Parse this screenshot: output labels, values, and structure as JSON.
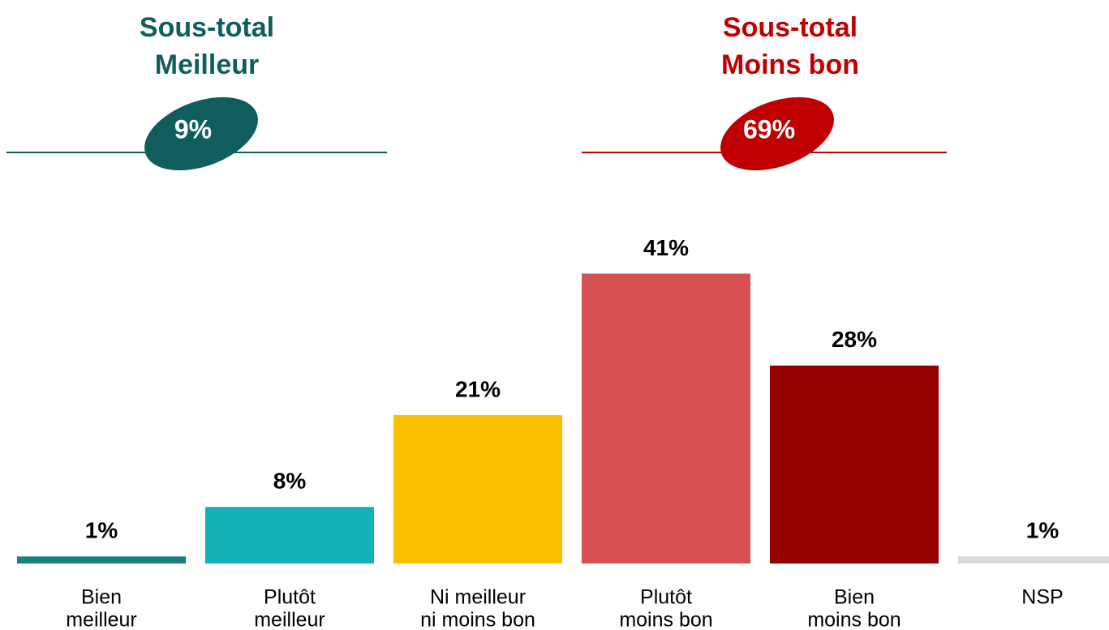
{
  "chart_data": {
    "type": "bar",
    "categories": [
      [
        "Bien",
        "meilleur"
      ],
      [
        "Plutôt",
        "meilleur"
      ],
      [
        "Ni meilleur",
        "ni moins bon"
      ],
      [
        "Plutôt",
        "moins bon"
      ],
      [
        "Bien",
        "moins bon"
      ],
      [
        "NSP"
      ]
    ],
    "values": [
      1,
      8,
      21,
      41,
      28,
      1
    ],
    "value_labels": [
      "1%",
      "8%",
      "21%",
      "41%",
      "28%",
      "1%"
    ],
    "colors": [
      "#1a7f80",
      "#14b1b8",
      "#fcc000",
      "#d64f51",
      "#960000",
      "#d9d9d9"
    ],
    "ylim": [
      0,
      50
    ],
    "subtotals": [
      {
        "title": [
          "Sous-total",
          "Meilleur"
        ],
        "label": "9%",
        "color": "#0f5e5d"
      },
      {
        "title": [
          "Sous-total",
          "Moins bon"
        ],
        "label": "69%",
        "color": "#c00000"
      }
    ]
  }
}
